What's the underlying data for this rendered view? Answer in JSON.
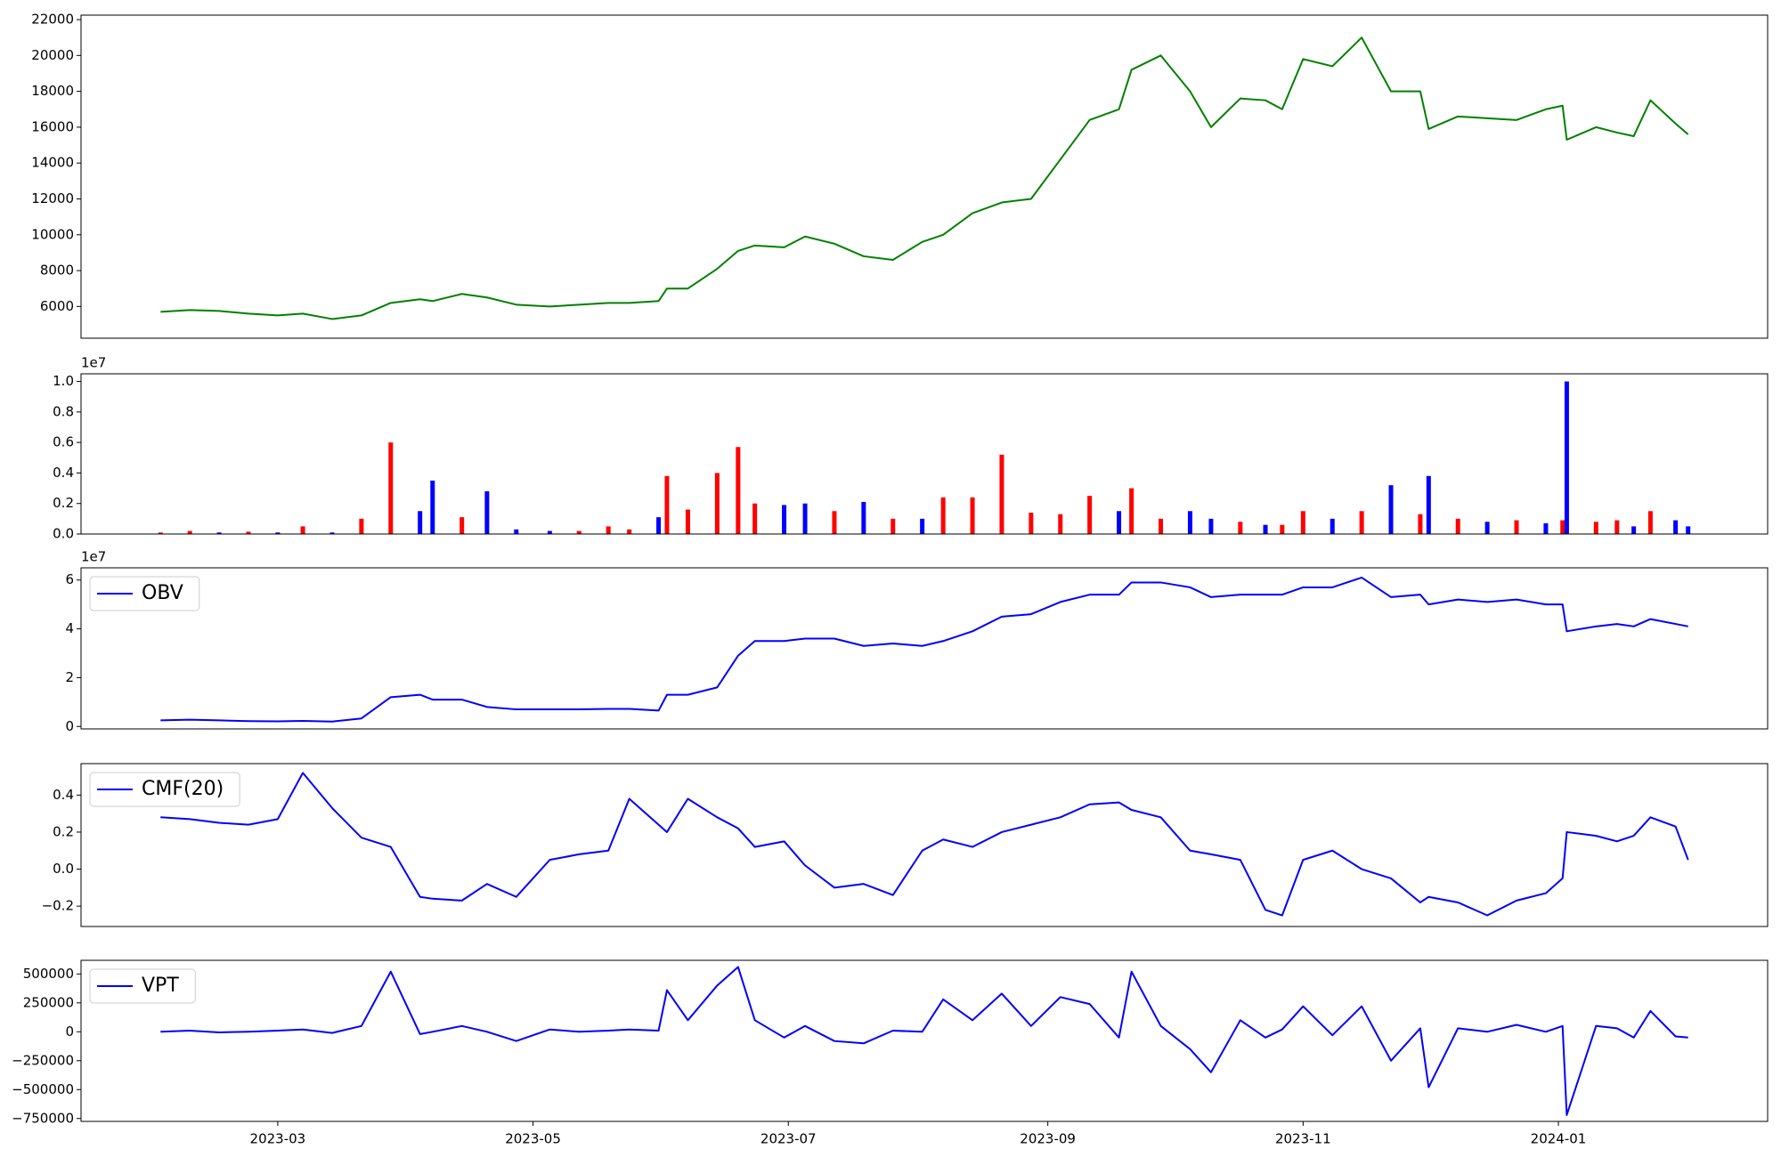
{
  "chart_data": [
    {
      "type": "line",
      "color": "#008000",
      "x": [
        "2023-02-01",
        "2023-02-08",
        "2023-02-15",
        "2023-02-22",
        "2023-03-01",
        "2023-03-07",
        "2023-03-14",
        "2023-03-21",
        "2023-03-28",
        "2023-04-04",
        "2023-04-07",
        "2023-04-14",
        "2023-04-20",
        "2023-04-27",
        "2023-05-05",
        "2023-05-12",
        "2023-05-19",
        "2023-05-24",
        "2023-05-31",
        "2023-06-02",
        "2023-06-07",
        "2023-06-14",
        "2023-06-19",
        "2023-06-23",
        "2023-06-30",
        "2023-07-05",
        "2023-07-12",
        "2023-07-19",
        "2023-07-26",
        "2023-08-02",
        "2023-08-07",
        "2023-08-14",
        "2023-08-21",
        "2023-08-28",
        "2023-09-04",
        "2023-09-11",
        "2023-09-18",
        "2023-09-21",
        "2023-09-28",
        "2023-10-05",
        "2023-10-10",
        "2023-10-17",
        "2023-10-23",
        "2023-10-27",
        "2023-11-01",
        "2023-11-08",
        "2023-11-15",
        "2023-11-22",
        "2023-11-29",
        "2023-12-01",
        "2023-12-08",
        "2023-12-15",
        "2023-12-22",
        "2023-12-29",
        "2024-01-02",
        "2024-01-03",
        "2024-01-10",
        "2024-01-15",
        "2024-01-19",
        "2024-01-23",
        "2024-01-29",
        "2024-02-01"
      ],
      "values": [
        5700,
        5800,
        5750,
        5600,
        5500,
        5600,
        5300,
        5500,
        6200,
        6400,
        6300,
        6700,
        6500,
        6100,
        6000,
        6100,
        6200,
        6200,
        6300,
        7000,
        7000,
        8100,
        9100,
        9400,
        9300,
        9900,
        9500,
        8800,
        8600,
        9600,
        10000,
        11200,
        11800,
        12000,
        14200,
        16400,
        17000,
        19200,
        20000,
        18000,
        16000,
        17600,
        17500,
        17000,
        19800,
        19400,
        21000,
        18000,
        18000,
        15900,
        16600,
        16500,
        16400,
        17000,
        17200,
        15300,
        16000,
        15700,
        15500,
        17500,
        16200,
        15600
      ],
      "xlim": [
        "2023-01-13",
        "2024-02-20"
      ],
      "ylim": [
        4230,
        22250
      ],
      "yticks": [
        6000,
        8000,
        10000,
        12000,
        14000,
        16000,
        18000,
        20000,
        22000
      ]
    },
    {
      "type": "bar",
      "offset_label": "1e7",
      "x": [
        "2023-02-01",
        "2023-02-08",
        "2023-02-15",
        "2023-02-22",
        "2023-03-01",
        "2023-03-07",
        "2023-03-14",
        "2023-03-21",
        "2023-03-28",
        "2023-04-04",
        "2023-04-07",
        "2023-04-14",
        "2023-04-20",
        "2023-04-27",
        "2023-05-05",
        "2023-05-12",
        "2023-05-19",
        "2023-05-24",
        "2023-05-31",
        "2023-06-02",
        "2023-06-07",
        "2023-06-14",
        "2023-06-19",
        "2023-06-23",
        "2023-06-30",
        "2023-07-05",
        "2023-07-12",
        "2023-07-19",
        "2023-07-26",
        "2023-08-02",
        "2023-08-07",
        "2023-08-14",
        "2023-08-21",
        "2023-08-28",
        "2023-09-04",
        "2023-09-11",
        "2023-09-18",
        "2023-09-21",
        "2023-09-28",
        "2023-10-05",
        "2023-10-10",
        "2023-10-17",
        "2023-10-23",
        "2023-10-27",
        "2023-11-01",
        "2023-11-08",
        "2023-11-15",
        "2023-11-22",
        "2023-11-29",
        "2023-12-01",
        "2023-12-08",
        "2023-12-15",
        "2023-12-22",
        "2023-12-29",
        "2024-01-02",
        "2024-01-03",
        "2024-01-10",
        "2024-01-15",
        "2024-01-19",
        "2024-01-23",
        "2024-01-29",
        "2024-02-01"
      ],
      "values": [
        0.01,
        0.02,
        0.01,
        0.015,
        0.01,
        0.05,
        0.01,
        0.1,
        0.6,
        0.15,
        0.35,
        0.11,
        0.28,
        0.03,
        0.02,
        0.02,
        0.05,
        0.03,
        0.11,
        0.38,
        0.16,
        0.4,
        0.57,
        0.2,
        0.19,
        0.2,
        0.15,
        0.21,
        0.1,
        0.1,
        0.24,
        0.24,
        0.52,
        0.14,
        0.13,
        0.25,
        0.15,
        0.3,
        0.1,
        0.15,
        0.1,
        0.08,
        0.06,
        0.06,
        0.15,
        0.1,
        0.15,
        0.32,
        0.13,
        0.38,
        0.1,
        0.08,
        0.09,
        0.07,
        0.09,
        1.0,
        0.08,
        0.09,
        0.05,
        0.15,
        0.09,
        0.05
      ],
      "colors": [
        "red",
        "red",
        "blue",
        "red",
        "blue",
        "red",
        "blue",
        "red",
        "red",
        "blue",
        "blue",
        "red",
        "blue",
        "blue",
        "blue",
        "red",
        "red",
        "red",
        "blue",
        "red",
        "red",
        "red",
        "red",
        "red",
        "blue",
        "blue",
        "red",
        "blue",
        "red",
        "blue",
        "red",
        "red",
        "red",
        "red",
        "red",
        "red",
        "blue",
        "red",
        "red",
        "blue",
        "blue",
        "red",
        "blue",
        "red",
        "red",
        "blue",
        "red",
        "blue",
        "red",
        "blue",
        "red",
        "blue",
        "red",
        "blue",
        "red",
        "blue",
        "red",
        "red",
        "blue",
        "red",
        "blue",
        "blue"
      ],
      "xlim": [
        "2023-01-13",
        "2024-02-20"
      ],
      "ylim": [
        0,
        1.05
      ],
      "yticks": [
        {
          "value": 0,
          "label": "0.0"
        },
        {
          "value": 0.2,
          "label": "0.2"
        },
        {
          "value": 0.4,
          "label": "0.4"
        },
        {
          "value": 0.6,
          "label": "0.6"
        },
        {
          "value": 0.8,
          "label": "0.8"
        },
        {
          "value": 1,
          "label": "1.0"
        }
      ]
    },
    {
      "type": "line",
      "offset_label": "1e7",
      "legend": "upper left",
      "x": [
        "2023-02-01",
        "2023-02-08",
        "2023-02-15",
        "2023-02-22",
        "2023-03-01",
        "2023-03-07",
        "2023-03-14",
        "2023-03-21",
        "2023-03-28",
        "2023-04-04",
        "2023-04-07",
        "2023-04-14",
        "2023-04-20",
        "2023-04-27",
        "2023-05-05",
        "2023-05-12",
        "2023-05-19",
        "2023-05-24",
        "2023-05-31",
        "2023-06-02",
        "2023-06-07",
        "2023-06-14",
        "2023-06-19",
        "2023-06-23",
        "2023-06-30",
        "2023-07-05",
        "2023-07-12",
        "2023-07-19",
        "2023-07-26",
        "2023-08-02",
        "2023-08-07",
        "2023-08-14",
        "2023-08-21",
        "2023-08-28",
        "2023-09-04",
        "2023-09-11",
        "2023-09-18",
        "2023-09-21",
        "2023-09-28",
        "2023-10-05",
        "2023-10-10",
        "2023-10-17",
        "2023-10-23",
        "2023-10-27",
        "2023-11-01",
        "2023-11-08",
        "2023-11-15",
        "2023-11-22",
        "2023-11-29",
        "2023-12-01",
        "2023-12-08",
        "2023-12-15",
        "2023-12-22",
        "2023-12-29",
        "2024-01-02",
        "2024-01-03",
        "2024-01-10",
        "2024-01-15",
        "2024-01-19",
        "2024-01-23",
        "2024-01-29",
        "2024-02-01"
      ],
      "series": [
        {
          "name": "OBV",
          "color": "#0000ff",
          "values": [
            0.25,
            0.28,
            0.25,
            0.22,
            0.21,
            0.23,
            0.2,
            0.33,
            1.2,
            1.3,
            1.1,
            1.1,
            0.8,
            0.7,
            0.7,
            0.7,
            0.72,
            0.72,
            0.65,
            1.3,
            1.3,
            1.6,
            2.9,
            3.5,
            3.5,
            3.6,
            3.6,
            3.3,
            3.4,
            3.3,
            3.5,
            3.9,
            4.5,
            4.6,
            5.1,
            5.4,
            5.4,
            5.9,
            5.9,
            5.7,
            5.3,
            5.4,
            5.4,
            5.4,
            5.7,
            5.7,
            6.1,
            5.3,
            5.4,
            5.0,
            5.2,
            5.1,
            5.2,
            5.0,
            5.0,
            3.9,
            4.1,
            4.2,
            4.1,
            4.4,
            4.2,
            4.1
          ]
        }
      ],
      "xlim": [
        "2023-01-13",
        "2024-02-20"
      ],
      "ylim": [
        -0.1,
        6.5
      ],
      "yticks": [
        0,
        2,
        4,
        6
      ]
    },
    {
      "type": "line",
      "legend": "upper left",
      "x": [
        "2023-02-01",
        "2023-02-08",
        "2023-02-15",
        "2023-02-22",
        "2023-03-01",
        "2023-03-07",
        "2023-03-14",
        "2023-03-21",
        "2023-03-28",
        "2023-04-04",
        "2023-04-07",
        "2023-04-14",
        "2023-04-20",
        "2023-04-27",
        "2023-05-05",
        "2023-05-12",
        "2023-05-19",
        "2023-05-24",
        "2023-05-31",
        "2023-06-02",
        "2023-06-07",
        "2023-06-14",
        "2023-06-19",
        "2023-06-23",
        "2023-06-30",
        "2023-07-05",
        "2023-07-12",
        "2023-07-19",
        "2023-07-26",
        "2023-08-02",
        "2023-08-07",
        "2023-08-14",
        "2023-08-21",
        "2023-08-28",
        "2023-09-04",
        "2023-09-11",
        "2023-09-18",
        "2023-09-21",
        "2023-09-28",
        "2023-10-05",
        "2023-10-10",
        "2023-10-17",
        "2023-10-23",
        "2023-10-27",
        "2023-11-01",
        "2023-11-08",
        "2023-11-15",
        "2023-11-22",
        "2023-11-29",
        "2023-12-01",
        "2023-12-08",
        "2023-12-15",
        "2023-12-22",
        "2023-12-29",
        "2024-01-02",
        "2024-01-03",
        "2024-01-10",
        "2024-01-15",
        "2024-01-19",
        "2024-01-23",
        "2024-01-29",
        "2024-02-01"
      ],
      "series": [
        {
          "name": "CMF(20)",
          "color": "#0000ff",
          "values": [
            0.28,
            0.27,
            0.25,
            0.24,
            0.27,
            0.52,
            0.33,
            0.17,
            0.12,
            -0.15,
            -0.16,
            -0.17,
            -0.08,
            -0.15,
            0.05,
            0.08,
            0.1,
            0.38,
            0.24,
            0.2,
            0.38,
            0.28,
            0.22,
            0.12,
            0.15,
            0.02,
            -0.1,
            -0.08,
            -0.14,
            0.1,
            0.16,
            0.12,
            0.2,
            0.24,
            0.28,
            0.35,
            0.36,
            0.32,
            0.28,
            0.1,
            0.08,
            0.05,
            -0.22,
            -0.25,
            0.05,
            0.1,
            0.0,
            -0.05,
            -0.18,
            -0.15,
            -0.18,
            -0.25,
            -0.17,
            -0.13,
            -0.05,
            0.2,
            0.18,
            0.15,
            0.18,
            0.28,
            0.23,
            0.05
          ]
        }
      ],
      "xlim": [
        "2023-01-13",
        "2024-02-20"
      ],
      "ylim": [
        -0.31,
        0.57
      ],
      "yticks": [
        {
          "value": -0.2,
          "label": "−0.2"
        },
        {
          "value": 0,
          "label": "0.0"
        },
        {
          "value": 0.2,
          "label": "0.2"
        },
        {
          "value": 0.4,
          "label": "0.4"
        }
      ]
    },
    {
      "type": "line",
      "legend": "upper left",
      "x": [
        "2023-02-01",
        "2023-02-08",
        "2023-02-15",
        "2023-02-22",
        "2023-03-01",
        "2023-03-07",
        "2023-03-14",
        "2023-03-21",
        "2023-03-28",
        "2023-04-04",
        "2023-04-07",
        "2023-04-14",
        "2023-04-20",
        "2023-04-27",
        "2023-05-05",
        "2023-05-12",
        "2023-05-19",
        "2023-05-24",
        "2023-05-31",
        "2023-06-02",
        "2023-06-07",
        "2023-06-14",
        "2023-06-19",
        "2023-06-23",
        "2023-06-30",
        "2023-07-05",
        "2023-07-12",
        "2023-07-19",
        "2023-07-26",
        "2023-08-02",
        "2023-08-07",
        "2023-08-14",
        "2023-08-21",
        "2023-08-28",
        "2023-09-04",
        "2023-09-11",
        "2023-09-18",
        "2023-09-21",
        "2023-09-28",
        "2023-10-05",
        "2023-10-10",
        "2023-10-17",
        "2023-10-23",
        "2023-10-27",
        "2023-11-01",
        "2023-11-08",
        "2023-11-15",
        "2023-11-22",
        "2023-11-29",
        "2023-12-01",
        "2023-12-08",
        "2023-12-15",
        "2023-12-22",
        "2023-12-29",
        "2024-01-02",
        "2024-01-03",
        "2024-01-10",
        "2024-01-15",
        "2024-01-19",
        "2024-01-23",
        "2024-01-29",
        "2024-02-01"
      ],
      "series": [
        {
          "name": "VPT",
          "color": "#0000ff",
          "values": [
            0,
            10000,
            -5000,
            0,
            10000,
            20000,
            -10000,
            50000,
            520000,
            -20000,
            0,
            50000,
            0,
            -80000,
            20000,
            0,
            10000,
            20000,
            10000,
            360000,
            100000,
            400000,
            560000,
            100000,
            -50000,
            50000,
            -80000,
            -100000,
            10000,
            0,
            280000,
            100000,
            330000,
            50000,
            300000,
            240000,
            -50000,
            520000,
            50000,
            -150000,
            -350000,
            100000,
            -50000,
            20000,
            220000,
            -30000,
            220000,
            -250000,
            30000,
            -480000,
            30000,
            0,
            60000,
            0,
            50000,
            -720000,
            50000,
            30000,
            -50000,
            180000,
            -40000,
            -50000
          ]
        }
      ],
      "xlim": [
        "2023-01-13",
        "2024-02-20"
      ],
      "ylim": [
        -775000,
        618000
      ],
      "yticks": [
        {
          "value": -750000,
          "label": "−750000"
        },
        {
          "value": -500000,
          "label": "−500000"
        },
        {
          "value": -250000,
          "label": "−250000"
        },
        0,
        250000,
        500000
      ],
      "xticks": [
        {
          "value": "2023-03-01",
          "label": "2023-03"
        },
        {
          "value": "2023-05-01",
          "label": "2023-05"
        },
        {
          "value": "2023-07-01",
          "label": "2023-07"
        },
        {
          "value": "2023-09-01",
          "label": "2023-09"
        },
        {
          "value": "2023-11-01",
          "label": "2023-11"
        },
        {
          "value": "2024-01-01",
          "label": "2024-01"
        }
      ]
    }
  ]
}
